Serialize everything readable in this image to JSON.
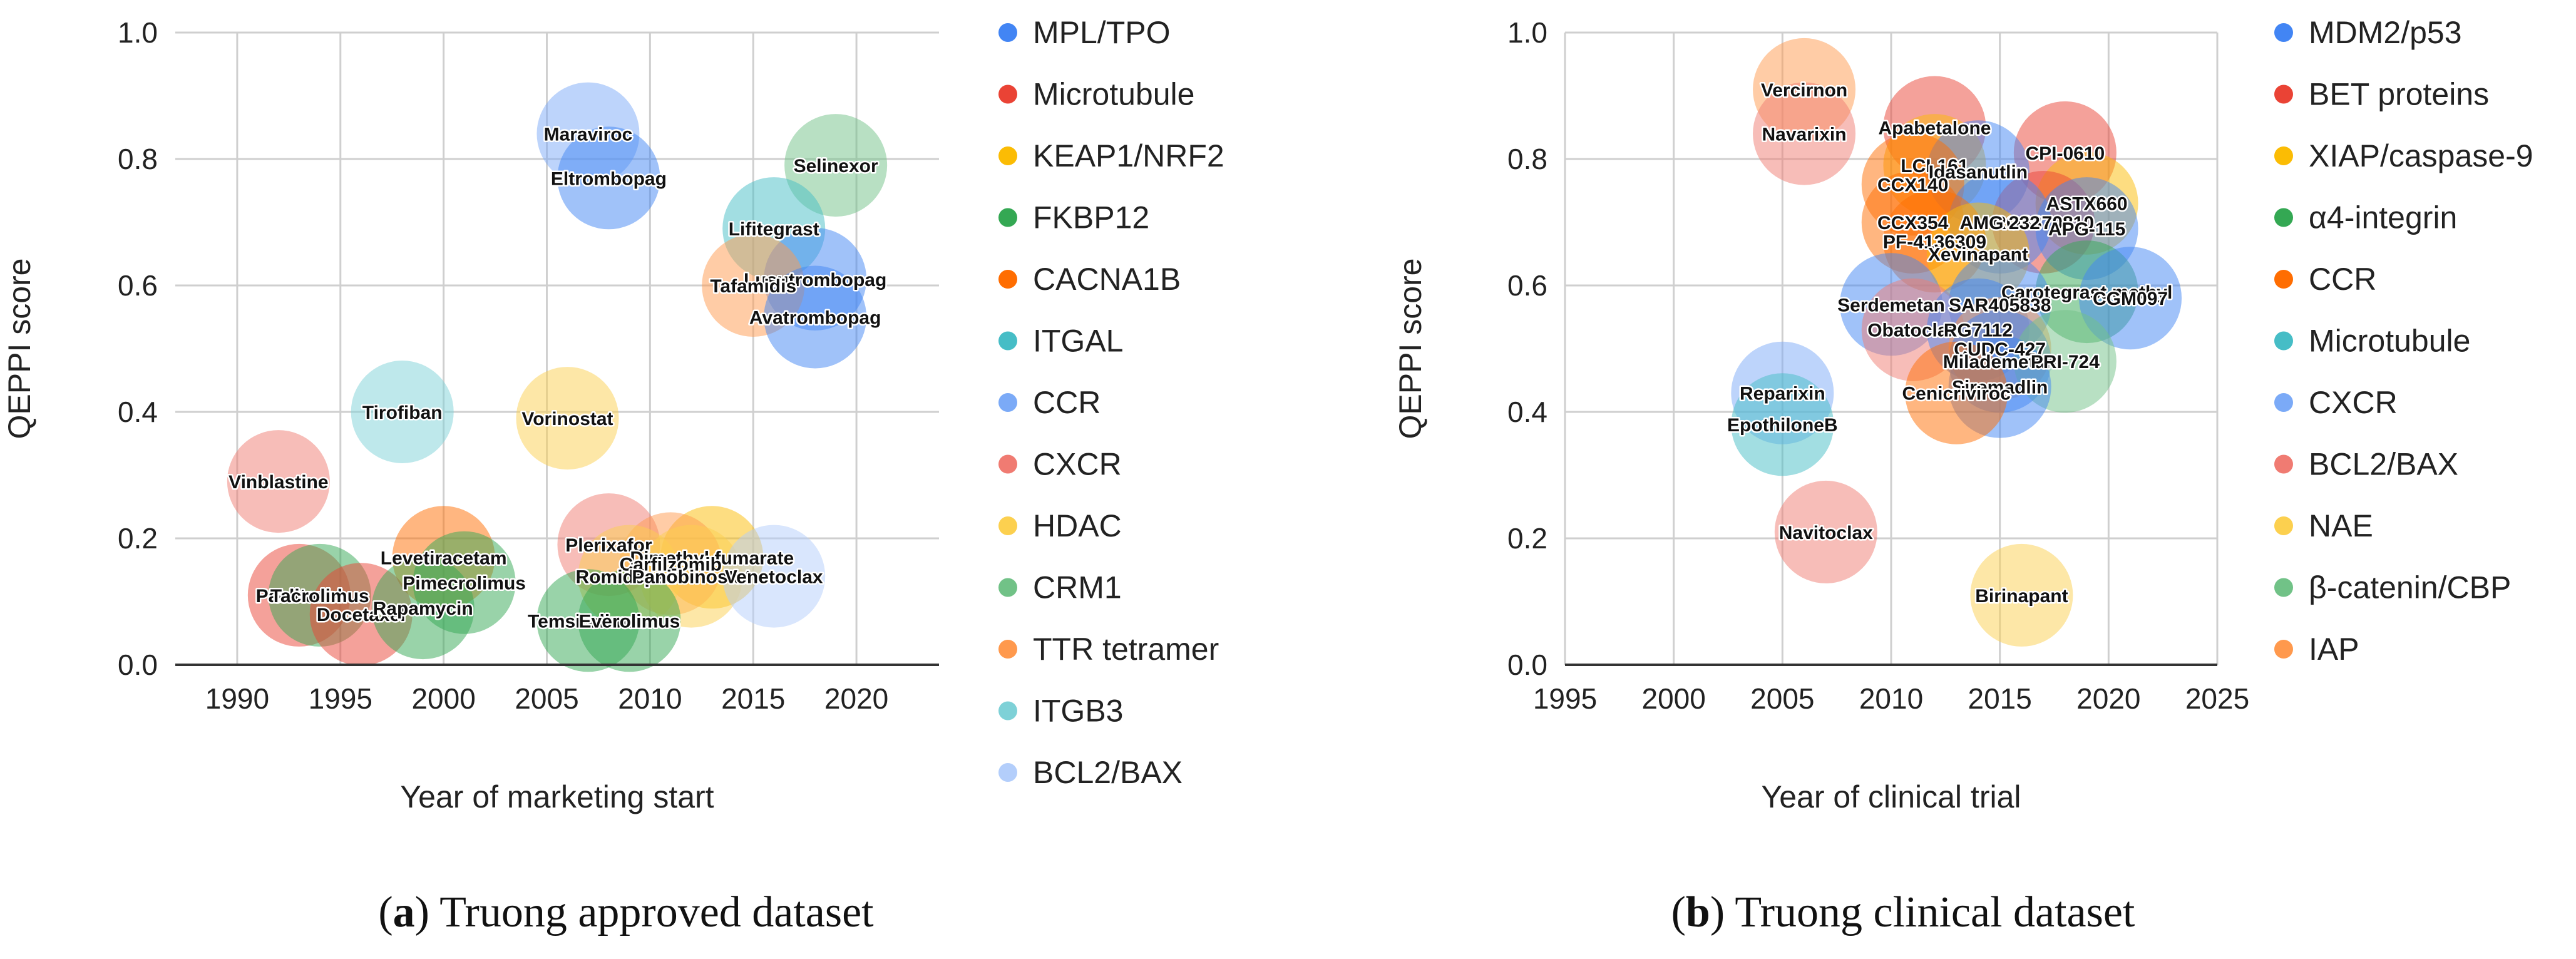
{
  "chart_data": [
    {
      "type": "scatter",
      "subtype": "bubble",
      "caption_letter": "(a)",
      "caption_text": "Truong approved dataset",
      "xlabel": "Year of marketing start",
      "ylabel": "QEPPI score",
      "xlim": [
        1987,
        2024
      ],
      "ylim": [
        0,
        1
      ],
      "xticks": [
        1990,
        1995,
        2000,
        2005,
        2010,
        2015,
        2020
      ],
      "yticks": [
        0.0,
        0.2,
        0.4,
        0.6,
        0.8,
        1.0
      ],
      "grid": true,
      "legend_position": "right",
      "legend": [
        {
          "name": "MPL/TPO",
          "color": "#4285F4"
        },
        {
          "name": "Microtubule",
          "color": "#EA4335"
        },
        {
          "name": "KEAP1/NRF2",
          "color": "#FBBC04"
        },
        {
          "name": "FKBP12",
          "color": "#34A853"
        },
        {
          "name": "CACNA1B",
          "color": "#FF6D01"
        },
        {
          "name": "ITGAL",
          "color": "#46BDC6"
        },
        {
          "name": "CCR",
          "color": "#7BAAF7"
        },
        {
          "name": "CXCR",
          "color": "#F07B72"
        },
        {
          "name": "HDAC",
          "color": "#FCD04F"
        },
        {
          "name": "CRM1",
          "color": "#71C287"
        },
        {
          "name": "TTR tetramer",
          "color": "#FF994D"
        },
        {
          "name": "ITGB3",
          "color": "#7ED1D7"
        },
        {
          "name": "BCL2/BAX",
          "color": "#B3CEFB"
        }
      ],
      "points": [
        {
          "label": "Maraviroc",
          "x": 2007,
          "y": 0.84,
          "series": "CCR"
        },
        {
          "label": "Eltrombopag",
          "x": 2008,
          "y": 0.77,
          "series": "MPL/TPO"
        },
        {
          "label": "Selinexor",
          "x": 2019,
          "y": 0.79,
          "series": "CRM1"
        },
        {
          "label": "Lifitegrast",
          "x": 2016,
          "y": 0.69,
          "series": "ITGAL"
        },
        {
          "label": "Lusutrombopag",
          "x": 2018,
          "y": 0.61,
          "series": "MPL/TPO"
        },
        {
          "label": "Tafamidis",
          "x": 2015,
          "y": 0.6,
          "series": "TTR tetramer"
        },
        {
          "label": "Avatrombopag",
          "x": 2018,
          "y": 0.55,
          "series": "MPL/TPO"
        },
        {
          "label": "Tirofiban",
          "x": 1998,
          "y": 0.4,
          "series": "ITGB3"
        },
        {
          "label": "Vorinostat",
          "x": 2006,
          "y": 0.39,
          "series": "HDAC"
        },
        {
          "label": "Vinblastine",
          "x": 1992,
          "y": 0.29,
          "series": "CXCR"
        },
        {
          "label": "Plerixafor",
          "x": 2008,
          "y": 0.19,
          "series": "CXCR"
        },
        {
          "label": "Dimethyl fumarate",
          "x": 2013,
          "y": 0.17,
          "series": "KEAP1/NRF2"
        },
        {
          "label": "Levetiracetam",
          "x": 2000,
          "y": 0.17,
          "series": "CACNA1B"
        },
        {
          "label": "Carfilzomib",
          "x": 2011,
          "y": 0.16,
          "series": "TTR tetramer"
        },
        {
          "label": "Romidepsin",
          "x": 2009,
          "y": 0.14,
          "series": "HDAC"
        },
        {
          "label": "Panobinostat",
          "x": 2012,
          "y": 0.14,
          "series": "HDAC"
        },
        {
          "label": "Venetoclax",
          "x": 2016,
          "y": 0.14,
          "series": "BCL2/BAX"
        },
        {
          "label": "Pimecrolimus",
          "x": 2001,
          "y": 0.13,
          "series": "FKBP12"
        },
        {
          "label": "Paclitaxel",
          "x": 1993,
          "y": 0.11,
          "series": "Microtubule"
        },
        {
          "label": "Tacrolimus",
          "x": 1994,
          "y": 0.11,
          "series": "FKBP12"
        },
        {
          "label": "Docetaxel",
          "x": 1996,
          "y": 0.08,
          "series": "Microtubule"
        },
        {
          "label": "Rapamycin",
          "x": 1999,
          "y": 0.09,
          "series": "FKBP12"
        },
        {
          "label": "Temsirolimus",
          "x": 2007,
          "y": 0.07,
          "series": "FKBP12"
        },
        {
          "label": "Everolimus",
          "x": 2009,
          "y": 0.07,
          "series": "FKBP12"
        }
      ]
    },
    {
      "type": "scatter",
      "subtype": "bubble",
      "caption_letter": "(b)",
      "caption_text": "Truong clinical dataset",
      "xlabel": "Year of clinical trial",
      "ylabel": "QEPPI score",
      "xlim": [
        1995,
        2025
      ],
      "ylim": [
        0,
        1
      ],
      "xticks": [
        1995,
        2000,
        2005,
        2010,
        2015,
        2020,
        2025
      ],
      "yticks": [
        0.0,
        0.2,
        0.4,
        0.6,
        0.8,
        1.0
      ],
      "grid": true,
      "legend_position": "right",
      "legend": [
        {
          "name": "MDM2/p53",
          "color": "#4285F4"
        },
        {
          "name": "BET proteins",
          "color": "#EA4335"
        },
        {
          "name": "XIAP/caspase-9",
          "color": "#FBBC04"
        },
        {
          "name": "α4-integrin",
          "color": "#34A853"
        },
        {
          "name": "CCR",
          "color": "#FF6D01"
        },
        {
          "name": "Microtubule",
          "color": "#46BDC6"
        },
        {
          "name": "CXCR",
          "color": "#7BAAF7"
        },
        {
          "name": "BCL2/BAX",
          "color": "#F07B72"
        },
        {
          "name": "NAE",
          "color": "#FCD04F"
        },
        {
          "name": "β-catenin/CBP",
          "color": "#71C287"
        },
        {
          "name": "IAP",
          "color": "#FF994D"
        }
      ],
      "points": [
        {
          "label": "Vercirnon",
          "x": 2006,
          "y": 0.91,
          "series": "IAP"
        },
        {
          "label": "Navarixin",
          "x": 2006,
          "y": 0.84,
          "series": "BCL2/BAX"
        },
        {
          "label": "Apabetalone",
          "x": 2012,
          "y": 0.85,
          "series": "BET proteins"
        },
        {
          "label": "CPI-0610",
          "x": 2018,
          "y": 0.81,
          "series": "BET proteins"
        },
        {
          "label": "LCL161",
          "x": 2012,
          "y": 0.79,
          "series": "XIAP/caspase-9"
        },
        {
          "label": "Idasanutlin",
          "x": 2014,
          "y": 0.78,
          "series": "MDM2/p53"
        },
        {
          "label": "CCX140",
          "x": 2011,
          "y": 0.76,
          "series": "CCR"
        },
        {
          "label": "ASTX660",
          "x": 2019,
          "y": 0.73,
          "series": "XIAP/caspase-9"
        },
        {
          "label": "CCX354",
          "x": 2011,
          "y": 0.7,
          "series": "CCR"
        },
        {
          "label": "RO6870810",
          "x": 2017,
          "y": 0.7,
          "series": "BET proteins"
        },
        {
          "label": "APG-115",
          "x": 2019,
          "y": 0.69,
          "series": "MDM2/p53"
        },
        {
          "label": "AMG 232",
          "x": 2015,
          "y": 0.7,
          "series": "MDM2/p53"
        },
        {
          "label": "PF-4136309",
          "x": 2012,
          "y": 0.67,
          "series": "CCR"
        },
        {
          "label": "Xevinapant",
          "x": 2014,
          "y": 0.65,
          "series": "XIAP/caspase-9"
        },
        {
          "label": "Carotegrast methyl",
          "x": 2019,
          "y": 0.59,
          "series": "α4-integrin"
        },
        {
          "label": "CGM097",
          "x": 2021,
          "y": 0.58,
          "series": "MDM2/p53"
        },
        {
          "label": "Serdemetan",
          "x": 2010,
          "y": 0.57,
          "series": "MDM2/p53"
        },
        {
          "label": "SAR405838",
          "x": 2015,
          "y": 0.57,
          "series": "MDM2/p53"
        },
        {
          "label": "Obatoclax",
          "x": 2011,
          "y": 0.53,
          "series": "BCL2/BAX"
        },
        {
          "label": "RG7112",
          "x": 2014,
          "y": 0.53,
          "series": "MDM2/p53"
        },
        {
          "label": "CUDC-427",
          "x": 2015,
          "y": 0.5,
          "series": "IAP"
        },
        {
          "label": "Milademetan",
          "x": 2015,
          "y": 0.48,
          "series": "MDM2/p53"
        },
        {
          "label": "PRI-724",
          "x": 2018,
          "y": 0.48,
          "series": "β-catenin/CBP"
        },
        {
          "label": "Siremadlin",
          "x": 2015,
          "y": 0.44,
          "series": "MDM2/p53"
        },
        {
          "label": "Cenicriviroc",
          "x": 2013,
          "y": 0.43,
          "series": "CCR"
        },
        {
          "label": "Reparixin",
          "x": 2005,
          "y": 0.43,
          "series": "CXCR"
        },
        {
          "label": "EpothiloneB",
          "x": 2005,
          "y": 0.38,
          "series": "Microtubule"
        },
        {
          "label": "Navitoclax",
          "x": 2007,
          "y": 0.21,
          "series": "BCL2/BAX"
        },
        {
          "label": "Birinapant",
          "x": 2016,
          "y": 0.11,
          "series": "NAE"
        }
      ]
    }
  ]
}
